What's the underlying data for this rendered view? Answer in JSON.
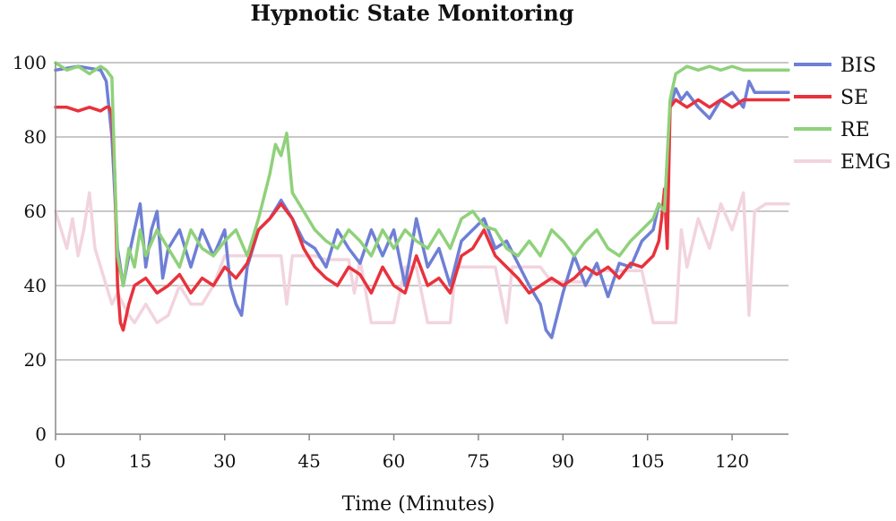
{
  "chart_data": {
    "type": "line",
    "title": "Hypnotic State Monitoring",
    "xlabel": "Time (Minutes)",
    "ylabel": "",
    "xlim": [
      0,
      130
    ],
    "ylim": [
      0,
      100
    ],
    "x_ticks": [
      0,
      15,
      30,
      45,
      60,
      75,
      90,
      105,
      120
    ],
    "y_ticks": [
      0,
      20,
      40,
      60,
      80,
      100
    ],
    "grid": "horizontal",
    "legend_position": "right",
    "series": [
      {
        "name": "BIS",
        "color": "#6f7fd6",
        "x": [
          0,
          4,
          8,
          9,
          10,
          11,
          12,
          13,
          14,
          15,
          16,
          17,
          18,
          19,
          20,
          22,
          24,
          26,
          28,
          30,
          31,
          32,
          33,
          34,
          36,
          38,
          40,
          42,
          44,
          46,
          48,
          50,
          52,
          54,
          56,
          58,
          60,
          62,
          64,
          66,
          68,
          70,
          72,
          74,
          76,
          78,
          80,
          82,
          84,
          86,
          87,
          88,
          90,
          92,
          94,
          96,
          98,
          100,
          102,
          104,
          106,
          107,
          108,
          109,
          110,
          111,
          112,
          114,
          116,
          118,
          120,
          122,
          123,
          124,
          130
        ],
        "y": [
          98,
          99,
          98,
          95,
          80,
          50,
          40,
          48,
          55,
          62,
          45,
          55,
          60,
          42,
          50,
          55,
          45,
          55,
          48,
          55,
          40,
          35,
          32,
          45,
          55,
          58,
          63,
          58,
          52,
          50,
          45,
          55,
          50,
          46,
          55,
          48,
          55,
          40,
          58,
          45,
          50,
          40,
          52,
          55,
          58,
          50,
          52,
          46,
          40,
          35,
          28,
          26,
          38,
          48,
          40,
          46,
          37,
          46,
          45,
          52,
          55,
          62,
          60,
          88,
          93,
          90,
          92,
          88,
          85,
          90,
          92,
          88,
          95,
          92,
          92
        ]
      },
      {
        "name": "SE",
        "color": "#e8323c",
        "x": [
          0,
          2,
          4,
          6,
          8,
          9,
          9.5,
          10,
          10.5,
          11,
          11.5,
          12,
          13,
          14,
          16,
          18,
          20,
          22,
          24,
          26,
          28,
          30,
          32,
          34,
          36,
          38,
          40,
          42,
          44,
          46,
          48,
          50,
          52,
          54,
          56,
          58,
          60,
          62,
          64,
          66,
          68,
          70,
          72,
          74,
          76,
          78,
          80,
          82,
          84,
          86,
          88,
          90,
          92,
          94,
          96,
          98,
          100,
          102,
          104,
          106,
          107,
          107.5,
          108,
          108.5,
          109,
          110,
          112,
          114,
          116,
          118,
          120,
          122,
          124,
          130
        ],
        "y": [
          88,
          88,
          87,
          88,
          87,
          88,
          88,
          86,
          70,
          40,
          30,
          28,
          35,
          40,
          42,
          38,
          40,
          43,
          38,
          42,
          40,
          45,
          42,
          46,
          55,
          58,
          62,
          58,
          50,
          45,
          42,
          40,
          45,
          43,
          38,
          45,
          40,
          38,
          48,
          40,
          42,
          38,
          48,
          50,
          55,
          48,
          45,
          42,
          38,
          40,
          42,
          40,
          42,
          45,
          43,
          45,
          42,
          46,
          45,
          48,
          52,
          58,
          66,
          50,
          88,
          90,
          88,
          90,
          88,
          90,
          88,
          90,
          90,
          90
        ]
      },
      {
        "name": "RE",
        "color": "#8fd17a",
        "x": [
          0,
          2,
          4,
          6,
          8,
          9,
          10,
          10.5,
          11,
          12,
          13,
          14,
          15,
          16,
          18,
          20,
          22,
          24,
          26,
          28,
          30,
          32,
          34,
          36,
          38,
          39,
          40,
          41,
          42,
          44,
          46,
          48,
          50,
          52,
          54,
          56,
          58,
          60,
          62,
          64,
          66,
          68,
          70,
          72,
          74,
          76,
          78,
          80,
          82,
          84,
          86,
          88,
          90,
          92,
          94,
          96,
          98,
          100,
          102,
          104,
          106,
          107,
          108,
          108.5,
          109,
          110,
          111,
          112,
          114,
          116,
          118,
          120,
          122,
          124,
          130
        ],
        "y": [
          100,
          98,
          99,
          97,
          99,
          98,
          96,
          70,
          48,
          40,
          50,
          45,
          55,
          48,
          55,
          50,
          45,
          55,
          50,
          48,
          52,
          55,
          48,
          58,
          70,
          78,
          75,
          81,
          65,
          60,
          55,
          52,
          50,
          55,
          52,
          48,
          55,
          50,
          55,
          52,
          50,
          55,
          50,
          58,
          60,
          56,
          55,
          50,
          48,
          52,
          48,
          55,
          52,
          48,
          52,
          55,
          50,
          48,
          52,
          55,
          58,
          62,
          60,
          75,
          90,
          97,
          98,
          99,
          98,
          99,
          98,
          99,
          98,
          98,
          98
        ]
      },
      {
        "name": "EMG",
        "color": "#f2d4de",
        "x": [
          0,
          1,
          2,
          3,
          4,
          5,
          6,
          7,
          8,
          9,
          10,
          11,
          12,
          13,
          14,
          16,
          18,
          20,
          22,
          24,
          26,
          28,
          30,
          31,
          32,
          34,
          36,
          38,
          40,
          41,
          42,
          44,
          46,
          48,
          50,
          52,
          53,
          54,
          56,
          58,
          60,
          62,
          64,
          66,
          68,
          70,
          71,
          72,
          74,
          76,
          78,
          80,
          81,
          82,
          84,
          86,
          88,
          90,
          92,
          94,
          96,
          98,
          100,
          102,
          104,
          106,
          107,
          108,
          110,
          111,
          112,
          114,
          116,
          118,
          120,
          122,
          123,
          124,
          126,
          128,
          130
        ],
        "y": [
          60,
          55,
          50,
          58,
          48,
          55,
          65,
          50,
          45,
          40,
          35,
          38,
          35,
          32,
          30,
          35,
          30,
          32,
          40,
          35,
          35,
          40,
          48,
          48,
          48,
          48,
          48,
          48,
          48,
          35,
          48,
          48,
          48,
          47,
          47,
          47,
          38,
          47,
          30,
          30,
          30,
          45,
          45,
          30,
          30,
          30,
          45,
          45,
          45,
          45,
          45,
          30,
          45,
          45,
          45,
          45,
          41,
          41,
          41,
          41,
          44,
          44,
          44,
          44,
          44,
          30,
          30,
          30,
          30,
          55,
          45,
          58,
          50,
          62,
          55,
          65,
          32,
          60,
          62,
          62,
          62
        ]
      }
    ]
  }
}
